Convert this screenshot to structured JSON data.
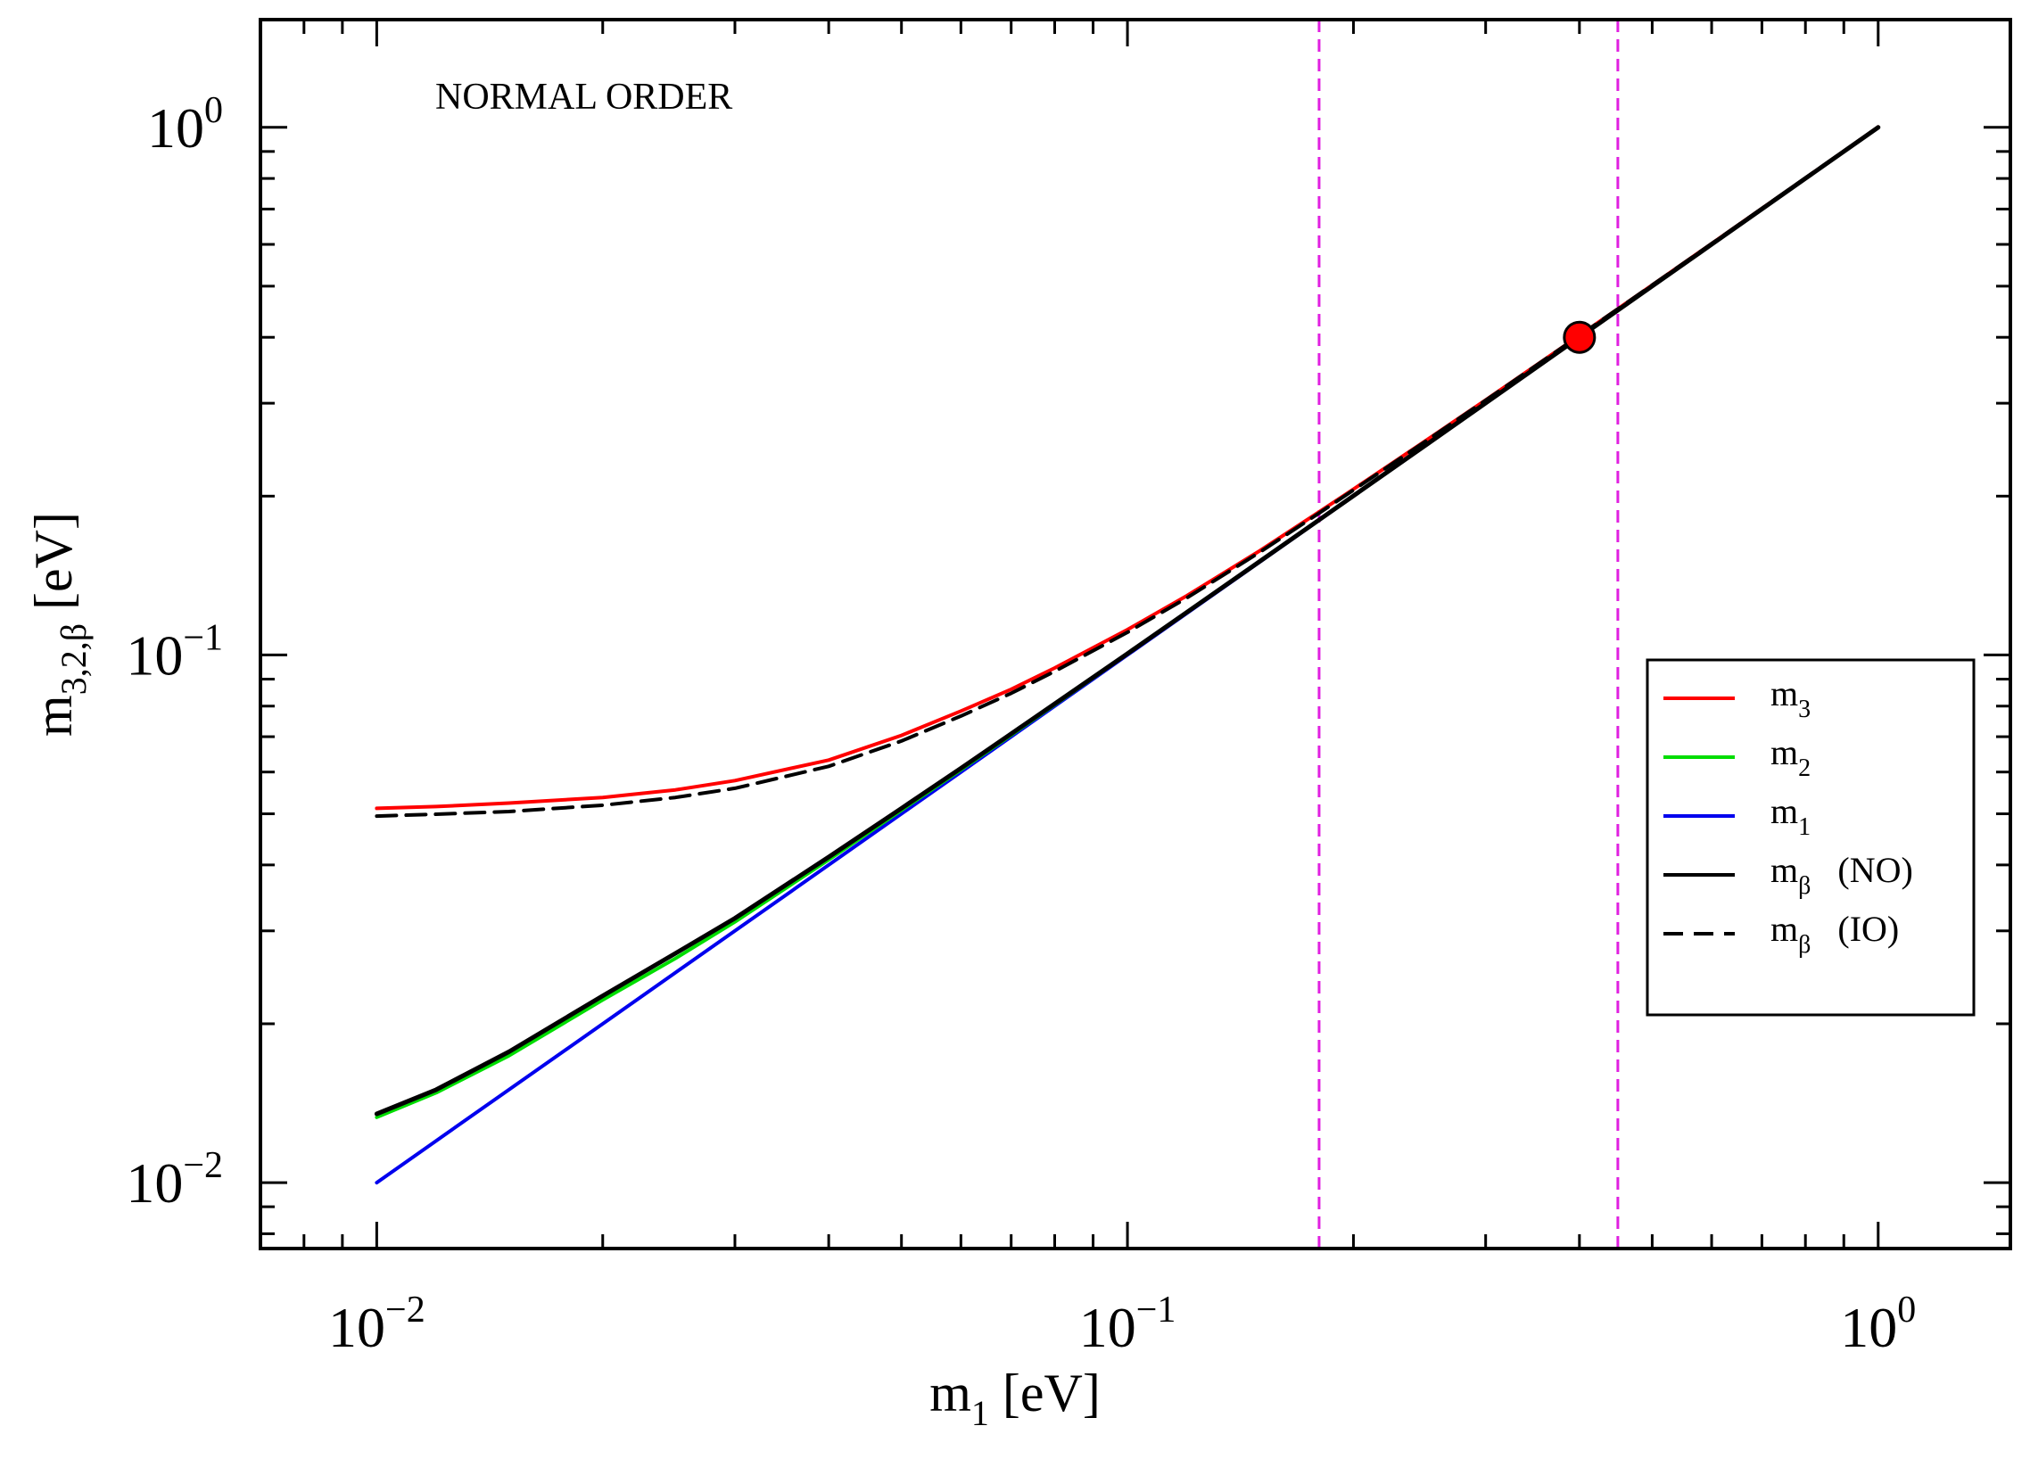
{
  "chart_data": {
    "type": "line",
    "scale": {
      "x": "log",
      "y": "log"
    },
    "xlim": [
      0.007,
      1.5
    ],
    "ylim": [
      0.0075,
      1.6
    ],
    "xlabel": {
      "base": "m",
      "sub": "1",
      "unit": " [eV]"
    },
    "ylabel": {
      "base": "m",
      "sub": "3,2,β",
      "unit": " [eV]"
    },
    "annotation": "NORMAL ORDER",
    "x_ticks": [
      {
        "value": 0.01,
        "base": "10",
        "exp": "−2"
      },
      {
        "value": 0.1,
        "base": "10",
        "exp": "−1"
      },
      {
        "value": 1,
        "base": "10",
        "exp": "0"
      }
    ],
    "y_ticks": [
      {
        "value": 0.01,
        "base": "10",
        "exp": "−2"
      },
      {
        "value": 0.1,
        "base": "10",
        "exp": "−1"
      },
      {
        "value": 1,
        "base": "10",
        "exp": "0"
      }
    ],
    "vertical_lines": [
      {
        "x": 0.18,
        "color": "#e020e0",
        "style": "dashed"
      },
      {
        "x": 0.45,
        "color": "#e020e0",
        "style": "dashed"
      }
    ],
    "marker": {
      "x": 0.4,
      "y": 0.4,
      "color": "#ff0000"
    },
    "x": [
      0.01,
      0.012,
      0.015,
      0.02,
      0.025,
      0.03,
      0.04,
      0.05,
      0.06,
      0.07,
      0.08,
      0.1,
      0.12,
      0.15,
      0.18,
      0.2,
      0.25,
      0.3,
      0.4,
      0.5,
      0.6,
      0.8,
      1.0
    ],
    "series": [
      {
        "name": "m3",
        "label": "m",
        "sub": "3",
        "suffix": "",
        "color": "#ff0000",
        "style": "solid",
        "values": [
          0.0512,
          0.0516,
          0.0524,
          0.0537,
          0.0555,
          0.0578,
          0.0632,
          0.0704,
          0.0783,
          0.0861,
          0.0945,
          0.1117,
          0.1295,
          0.1575,
          0.1866,
          0.2062,
          0.2551,
          0.3043,
          0.4032,
          0.5025,
          0.6021,
          0.8016,
          1.0013
        ]
      },
      {
        "name": "m2",
        "label": "m",
        "sub": "2",
        "suffix": "",
        "color": "#00dd00",
        "style": "solid",
        "values": [
          0.0133,
          0.0148,
          0.0174,
          0.0222,
          0.0266,
          0.0312,
          0.0409,
          0.0508,
          0.0606,
          0.0705,
          0.0805,
          0.1004,
          0.1203,
          0.1503,
          0.1802,
          0.2002,
          0.2502,
          0.3001,
          0.4001,
          0.5001,
          0.6001,
          0.8,
          1.0
        ]
      },
      {
        "name": "m1",
        "label": "m",
        "sub": "1",
        "suffix": "",
        "color": "#0000ee",
        "style": "solid",
        "values": [
          0.01,
          0.012,
          0.015,
          0.02,
          0.025,
          0.03,
          0.04,
          0.05,
          0.06,
          0.07,
          0.08,
          0.1,
          0.12,
          0.15,
          0.18,
          0.2,
          0.25,
          0.3,
          0.4,
          0.5,
          0.6,
          0.8,
          1.0
        ]
      },
      {
        "name": "m_beta_NO",
        "label": "m",
        "sub": "β",
        "suffix": "(NO)",
        "color": "#000000",
        "style": "solid",
        "values": [
          0.0135,
          0.015,
          0.0177,
          0.0226,
          0.0272,
          0.0317,
          0.0414,
          0.0512,
          0.061,
          0.0709,
          0.0808,
          0.1006,
          0.1205,
          0.1504,
          0.1803,
          0.2003,
          0.2502,
          0.3002,
          0.4001,
          0.5001,
          0.6001,
          0.8,
          1.0
        ]
      },
      {
        "name": "m_beta_IO",
        "label": "m",
        "sub": "β",
        "suffix": "(IO)",
        "color": "#000000",
        "style": "dashed",
        "values": [
          0.0495,
          0.0499,
          0.0505,
          0.0519,
          0.0537,
          0.0559,
          0.0615,
          0.0687,
          0.0766,
          0.0846,
          0.0931,
          0.1104,
          0.1283,
          0.1565,
          0.1857,
          0.2054,
          0.2545,
          0.3038,
          0.4028,
          0.5022,
          0.6019,
          0.8015,
          1.0012
        ]
      }
    ],
    "legend_position": "right"
  }
}
